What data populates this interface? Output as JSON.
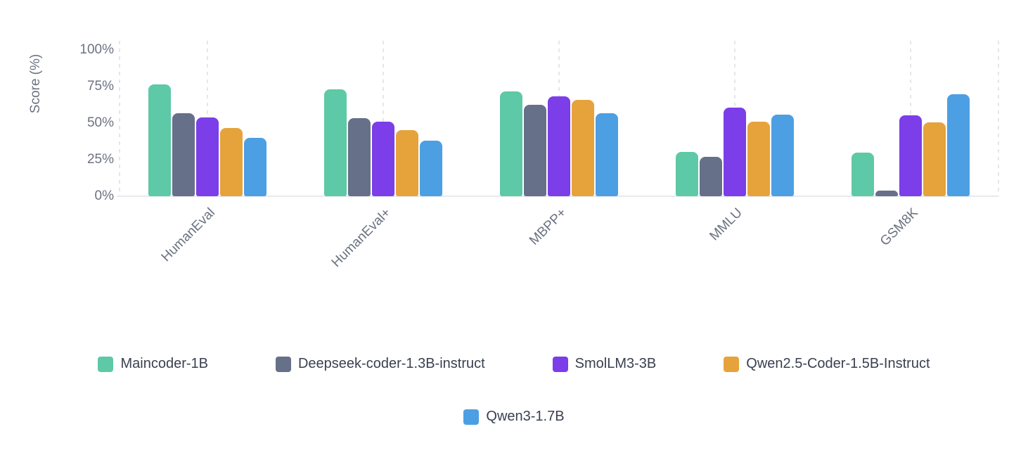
{
  "chart_data": {
    "type": "bar",
    "title": "",
    "xlabel": "",
    "ylabel": "Score (%)",
    "ylim": [
      0,
      100
    ],
    "yticks": [
      {
        "value": 0,
        "label": "0%"
      },
      {
        "value": 25,
        "label": "25%"
      },
      {
        "value": 50,
        "label": "50%"
      },
      {
        "value": 75,
        "label": "75%"
      },
      {
        "value": 100,
        "label": "100%"
      }
    ],
    "grid": "vertical-dashed",
    "legend_position": "bottom",
    "categories": [
      "HumanEval",
      "HumanEval+",
      "MBPP+",
      "MMLU",
      "GSM8K"
    ],
    "series": [
      {
        "name": "Maincoder-1B",
        "color": "#5ec9a6",
        "values": [
          76.5,
          73,
          71.5,
          30.5,
          30
        ]
      },
      {
        "name": "Deepseek-coder-1.3B-instruct",
        "color": "#667089",
        "values": [
          56.5,
          53.5,
          62.5,
          27,
          4
        ]
      },
      {
        "name": "SmolLM3-3B",
        "color": "#7b3ee8",
        "values": [
          54,
          51,
          68.5,
          60.5,
          55.5
        ]
      },
      {
        "name": "Qwen2.5-Coder-1.5B-Instruct",
        "color": "#e6a33c",
        "values": [
          46.5,
          45,
          66,
          51,
          50.5
        ]
      },
      {
        "name": "Qwen3-1.7B",
        "color": "#4d9fe3",
        "values": [
          40,
          38,
          56.5,
          56,
          69.5
        ]
      }
    ],
    "colors": {
      "axis_text": "#6b7280",
      "legend_text": "#394050",
      "gridline": "#e3e6ea",
      "baseline": "#e7e9ec",
      "background": "#ffffff"
    }
  }
}
